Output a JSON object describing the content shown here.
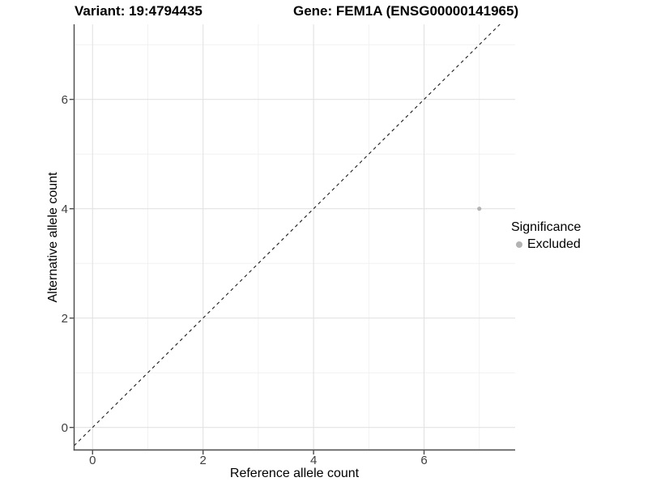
{
  "chart_data": {
    "type": "scatter",
    "title_left": "Variant: 19:4794435",
    "title_right": "Gene: FEM1A (ENSG00000141965)",
    "xlabel": "Reference allele count",
    "ylabel": "Alternative allele count",
    "xlim": [
      -0.334,
      7.649
    ],
    "ylim": [
      -0.412,
      7.373
    ],
    "x_major_ticks": [
      0,
      2,
      4,
      6
    ],
    "x_minor_ticks": [
      1,
      3,
      5,
      7
    ],
    "y_major_ticks": [
      0,
      2,
      4,
      6
    ],
    "y_minor_ticks": [
      1,
      3,
      5,
      7
    ],
    "grid": true,
    "points": [
      {
        "x": 7,
        "y": 4,
        "series": "Excluded"
      }
    ],
    "reference_line": {
      "type": "identity",
      "style": "dashed",
      "color": "#1a1a1a"
    },
    "legend": {
      "position": "right",
      "title": "Significance",
      "items": [
        {
          "label": "Excluded",
          "color": "#b3b3b3"
        }
      ]
    },
    "colors": {
      "point": "#b3b3b3",
      "grid_major": "#e2e2e2",
      "grid_minor": "#efefef",
      "axis_line": "#4a4a4a",
      "tick_label": "#404040",
      "background": "#ffffff"
    }
  }
}
